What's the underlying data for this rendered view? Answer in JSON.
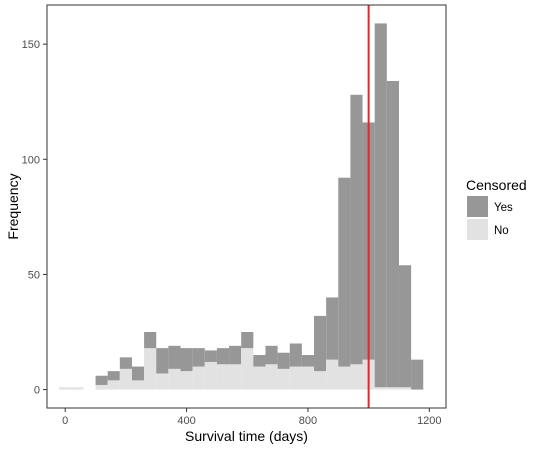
{
  "chart_data": {
    "type": "bar",
    "stacked": true,
    "xlabel": "Survival time (days)",
    "ylabel": "Frequency",
    "xlim": [
      -60,
      1255
    ],
    "ylim": [
      -8,
      167
    ],
    "xticks": [
      0,
      400,
      800,
      1200
    ],
    "yticks": [
      0,
      50,
      100,
      150
    ],
    "bin_width": 40,
    "x": [
      0,
      40,
      80,
      120,
      160,
      200,
      240,
      280,
      320,
      360,
      400,
      440,
      480,
      520,
      560,
      600,
      640,
      680,
      720,
      760,
      800,
      840,
      880,
      920,
      960,
      1000,
      1040,
      1080,
      1120,
      1160,
      1200
    ],
    "series": [
      {
        "name": "No",
        "color": "#e2e2e2",
        "values": [
          1,
          1,
          0,
          2,
          4,
          9,
          4,
          18,
          7,
          9,
          8,
          10,
          12,
          11,
          11,
          18,
          10,
          11,
          9,
          10,
          10,
          8,
          13,
          10,
          11,
          13,
          1,
          1,
          1,
          0,
          0
        ]
      },
      {
        "name": "Yes",
        "color": "#979797",
        "values": [
          0,
          0,
          0,
          4,
          4,
          5,
          6,
          7,
          11,
          10,
          10,
          8,
          5,
          7,
          8,
          7,
          5,
          8,
          7,
          10,
          5,
          24,
          27,
          82,
          117,
          103,
          158,
          133,
          53,
          13,
          0
        ]
      }
    ],
    "vline": {
      "x": 1000,
      "color": "#e6262b"
    },
    "legend": {
      "title": "Censored",
      "position": "right",
      "entries": [
        "Yes",
        "No"
      ]
    },
    "grid": false,
    "panel_border": true
  }
}
